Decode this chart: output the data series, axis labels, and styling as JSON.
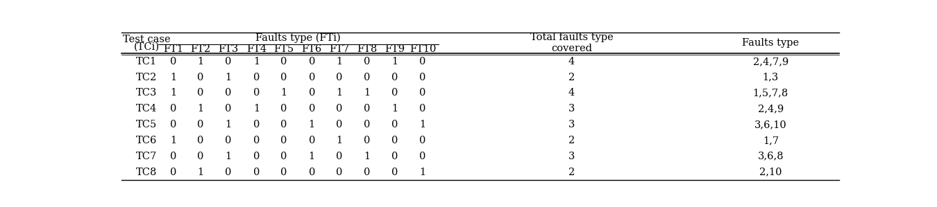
{
  "rows": [
    [
      "TC1",
      "0",
      "1",
      "0",
      "1",
      "0",
      "0",
      "1",
      "0",
      "1",
      "0",
      "4",
      "2,4,7,9"
    ],
    [
      "TC2",
      "1",
      "0",
      "1",
      "0",
      "0",
      "0",
      "0",
      "0",
      "0",
      "0",
      "2",
      "1,3"
    ],
    [
      "TC3",
      "1",
      "0",
      "0",
      "0",
      "1",
      "0",
      "1",
      "1",
      "0",
      "0",
      "4",
      "1,5,7,8"
    ],
    [
      "TC4",
      "0",
      "1",
      "0",
      "1",
      "0",
      "0",
      "0",
      "0",
      "1",
      "0",
      "3",
      "2,4,9"
    ],
    [
      "TC5",
      "0",
      "0",
      "1",
      "0",
      "0",
      "1",
      "0",
      "0",
      "0",
      "1",
      "3",
      "3,6,10"
    ],
    [
      "TC6",
      "1",
      "0",
      "0",
      "0",
      "0",
      "0",
      "1",
      "0",
      "0",
      "0",
      "2",
      "1,7"
    ],
    [
      "TC7",
      "0",
      "0",
      "1",
      "0",
      "0",
      "1",
      "0",
      "1",
      "0",
      "0",
      "3",
      "3,6,8"
    ],
    [
      "TC8",
      "0",
      "1",
      "0",
      "0",
      "0",
      "0",
      "0",
      "0",
      "0",
      "1",
      "2",
      "2,10"
    ]
  ],
  "ft_labels": [
    "FT1",
    "FT2",
    "FT3",
    "FT4",
    "FT5",
    "FT6",
    "FT7",
    "FT8",
    "FT9",
    "FT10"
  ],
  "header1_left": "Test case",
  "header1_left2": "(TCi)",
  "header1_ft": "Faults type (FTi)",
  "header1_total": "Total faults type\ncovered",
  "header1_ftype": "Faults type",
  "background_color": "#ffffff",
  "text_color": "#000000",
  "font_size": 10.5,
  "line_color": "#000000"
}
